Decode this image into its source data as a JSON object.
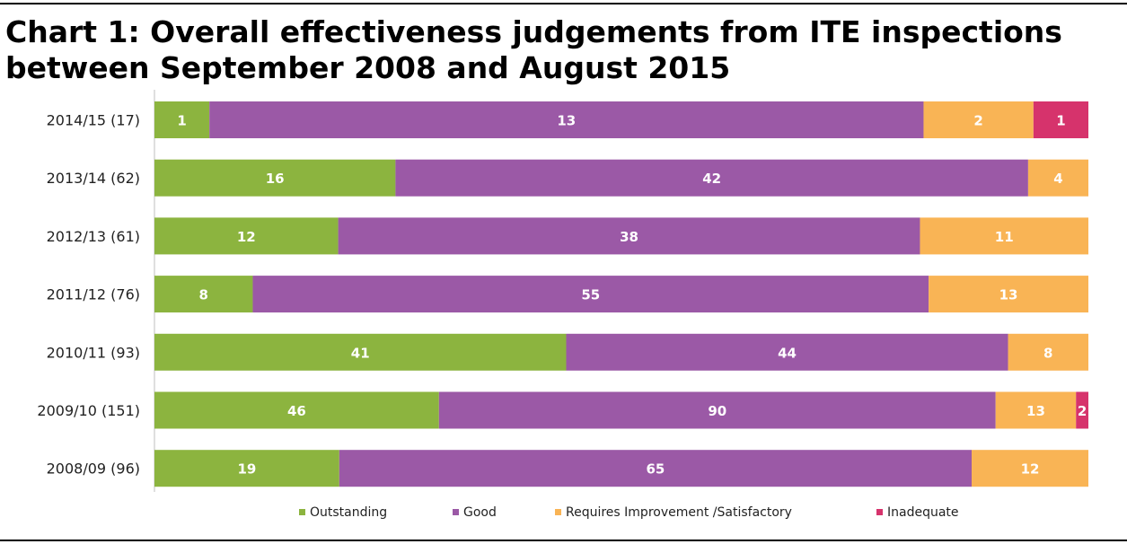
{
  "title_line1": "Chart 1: Overall effectiveness judgements from ITE inspections",
  "title_line2": "between September 2008 and August 2015",
  "chart_data": {
    "type": "bar",
    "orientation": "horizontal",
    "stacked": true,
    "normalized_to_100_percent": true,
    "categories": [
      "2014/15 (17)",
      "2013/14 (62)",
      "2012/13 (61)",
      "2011/12 (76)",
      "2010/11 (93)",
      "2009/10 (151)",
      "2008/09 (96)"
    ],
    "series": [
      {
        "name": "Outstanding",
        "color": "#8cb43f",
        "values": [
          1,
          16,
          12,
          8,
          41,
          46,
          19
        ]
      },
      {
        "name": "Good",
        "color": "#9b59a6",
        "values": [
          13,
          42,
          38,
          55,
          44,
          90,
          65
        ]
      },
      {
        "name": "Requires Improvement /Satisfactory",
        "color": "#f9b455",
        "values": [
          2,
          4,
          11,
          13,
          8,
          13,
          12
        ]
      },
      {
        "name": "Inadequate",
        "color": "#d6336c",
        "values": [
          1,
          0,
          0,
          0,
          0,
          2,
          0
        ]
      }
    ],
    "legend_position": "bottom",
    "grid": false
  }
}
